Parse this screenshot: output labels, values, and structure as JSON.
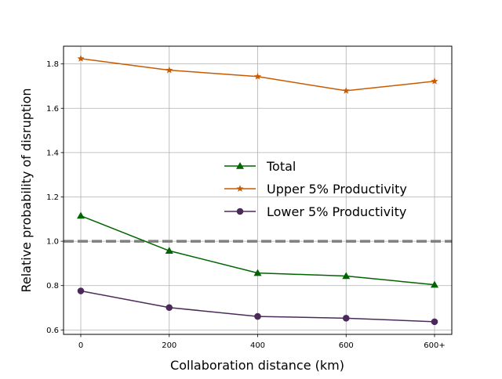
{
  "chart_data": {
    "type": "line",
    "xlabel": "Collaboration distance (km)",
    "ylabel": "Relative probability of disruption",
    "categories": [
      "0",
      "200",
      "400",
      "600",
      "600+"
    ],
    "ylim": [
      0.58,
      1.88
    ],
    "yticks": [
      "0.6",
      "0.8",
      "1.0",
      "1.2",
      "1.4",
      "1.6",
      "1.8"
    ],
    "grid": true,
    "legend_position": "center-right",
    "reference_line": {
      "y": 1.0,
      "style": "dashed",
      "color": "#808080"
    },
    "series": [
      {
        "name": "Total",
        "color": "#006400",
        "marker": "triangle",
        "values": [
          1.115,
          0.957,
          0.857,
          0.843,
          0.804
        ]
      },
      {
        "name": "Upper 5% Productivity",
        "color": "#c85a00",
        "marker": "star",
        "values": [
          1.824,
          1.772,
          1.743,
          1.679,
          1.722
        ]
      },
      {
        "name": "Lower 5% Productivity",
        "color": "#4b2a5a",
        "marker": "circle",
        "values": [
          0.776,
          0.701,
          0.661,
          0.653,
          0.637
        ]
      }
    ]
  }
}
